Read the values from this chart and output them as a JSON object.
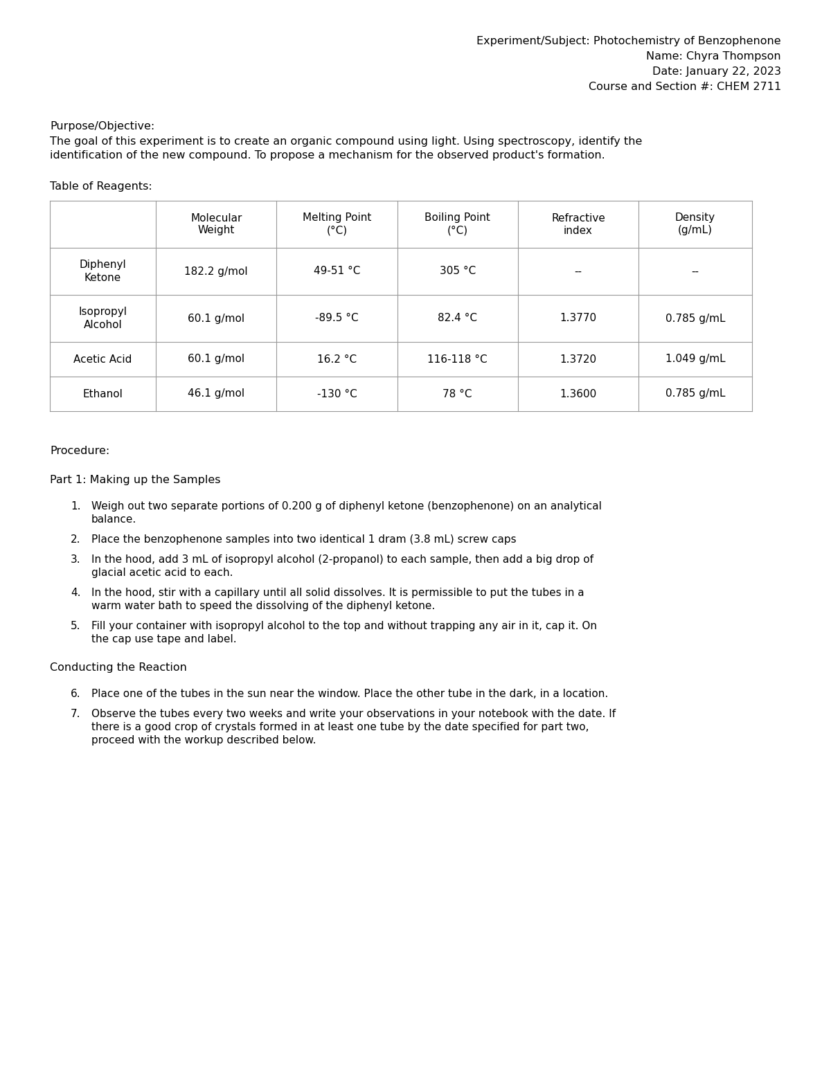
{
  "header_lines": [
    "Experiment/Subject: Photochemistry of Benzophenone",
    "Name: Chyra Thompson",
    "Date: January 22, 2023",
    "Course and Section #: CHEM 2711"
  ],
  "purpose_label": "Purpose/Objective:",
  "purpose_text_line1": "The goal of this experiment is to create an organic compound using light. Using spectroscopy, identify the",
  "purpose_text_line2": "identification of the new compound. To propose a mechanism for the observed product's formation.",
  "table_label": "Table of Reagents:",
  "table_headers": [
    "",
    "Molecular\nWeight",
    "Melting Point\n(°C)",
    "Boiling Point\n(°C)",
    "Refractive\nindex",
    "Density\n(g/mL)"
  ],
  "table_rows": [
    [
      "Diphenyl\nKetone",
      "182.2 g/mol",
      "49-51 °C",
      "305 °C",
      "--",
      "--"
    ],
    [
      "Isopropyl\nAlcohol",
      "60.1 g/mol",
      "-89.5 °C",
      "82.4 °C",
      "1.3770",
      "0.785 g/mL"
    ],
    [
      "Acetic Acid",
      "60.1 g/mol",
      "16.2 °C",
      "116-118 °C",
      "1.3720",
      "1.049 g/mL"
    ],
    [
      "Ethanol",
      "46.1 g/mol",
      "-130 °C",
      "78 °C",
      "1.3600",
      "0.785 g/mL"
    ]
  ],
  "procedure_label": "Procedure:",
  "part1_label": "Part 1: Making up the Samples",
  "steps_1": [
    [
      "Weigh out two separate portions of 0.200 g of diphenyl ketone (benzophenone) on an analytical",
      "balance."
    ],
    [
      "Place the benzophenone samples into two identical 1 dram (3.8 mL) screw caps"
    ],
    [
      "In the hood, add 3 mL of isopropyl alcohol (2-propanol) to each sample, then add a big drop of",
      "glacial acetic acid to each."
    ],
    [
      "In the hood, stir with a capillary until all solid dissolves. It is permissible to put the tubes in a",
      "warm water bath to speed the dissolving of the diphenyl ketone."
    ],
    [
      "Fill your container with isopropyl alcohol to the top and without trapping any air in it, cap it. On",
      "the cap use tape and label."
    ]
  ],
  "conducting_label": "Conducting the Reaction",
  "steps_2": [
    [
      "Place one of the tubes in the sun near the window. Place the other tube in the dark, in a location."
    ],
    [
      "Observe the tubes every two weeks and write your observations in your notebook with the date. If",
      "there is a good crop of crystals formed in at least one tube by the date specified for part two,",
      "proceed with the workup described below."
    ]
  ],
  "bg_color": "#ffffff",
  "text_color": "#000000",
  "font_size": 11.5,
  "table_line_color": "#999999"
}
